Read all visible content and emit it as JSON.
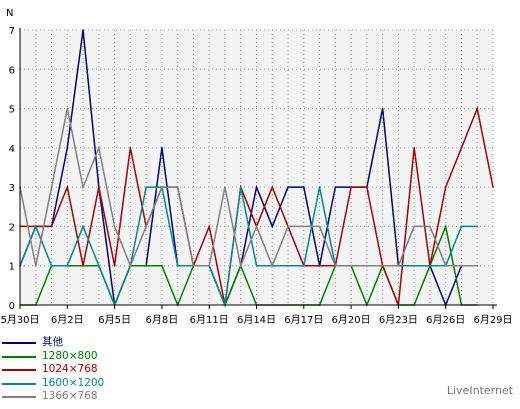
{
  "chart_data": {
    "type": "line",
    "y_unit_label": "N",
    "ylim": [
      0,
      7
    ],
    "yticks": [
      "0",
      "1",
      "2",
      "3",
      "4",
      "5",
      "6",
      "7"
    ],
    "x_ticks": [
      {
        "label": "5月30日",
        "day": 0
      },
      {
        "label": "6月2日",
        "day": 3
      },
      {
        "label": "6月5日",
        "day": 6
      },
      {
        "label": "6月8日",
        "day": 9
      },
      {
        "label": "6月11日",
        "day": 12
      },
      {
        "label": "6月14日",
        "day": 15
      },
      {
        "label": "6月17日",
        "day": 18
      },
      {
        "label": "6月20日",
        "day": 21
      },
      {
        "label": "6月23日",
        "day": 24
      },
      {
        "label": "6月26日",
        "day": 27
      },
      {
        "label": "6月29日",
        "day": 30
      }
    ],
    "grid": true,
    "series": [
      {
        "name": "其他",
        "color": "#000080",
        "values": [
          1,
          2,
          2,
          4,
          7,
          3,
          0,
          1,
          1,
          4,
          1,
          1,
          1,
          0,
          1,
          3,
          2,
          3,
          3,
          1,
          3,
          3,
          3,
          5,
          1,
          1,
          1,
          0,
          1,
          1
        ]
      },
      {
        "name": "1280×800",
        "color": "#008000",
        "values": [
          0,
          0,
          1,
          1,
          1,
          1,
          0,
          1,
          1,
          1,
          0,
          1,
          1,
          0,
          1,
          0,
          0,
          0,
          0,
          0,
          1,
          1,
          0,
          1,
          0,
          0,
          1,
          2,
          0,
          0
        ]
      },
      {
        "name": "1024×768",
        "color": "#aa0000",
        "values": [
          2,
          2,
          2,
          3,
          1,
          3,
          1,
          4,
          2,
          3,
          3,
          1,
          2,
          0,
          3,
          2,
          3,
          2,
          1,
          1,
          1,
          3,
          3,
          1,
          0,
          4,
          1,
          3,
          4,
          5,
          3
        ]
      },
      {
        "name": "1600×1200",
        "color": "#008b8b",
        "values": [
          1,
          2,
          1,
          1,
          2,
          1,
          0,
          1,
          3,
          3,
          1,
          1,
          1,
          0,
          3,
          1,
          1,
          1,
          1,
          3,
          1,
          1,
          1,
          1,
          1,
          1,
          1,
          1,
          2,
          2
        ]
      },
      {
        "name": "1366×768",
        "color": "#808080",
        "values": [
          3,
          1,
          3,
          5,
          3,
          4,
          2,
          1,
          2,
          3,
          3,
          1,
          1,
          3,
          1,
          2,
          1,
          2,
          2,
          2,
          1,
          1,
          1,
          1,
          1,
          2,
          2,
          1,
          1,
          1
        ]
      }
    ]
  },
  "credit": "LiveInternet"
}
